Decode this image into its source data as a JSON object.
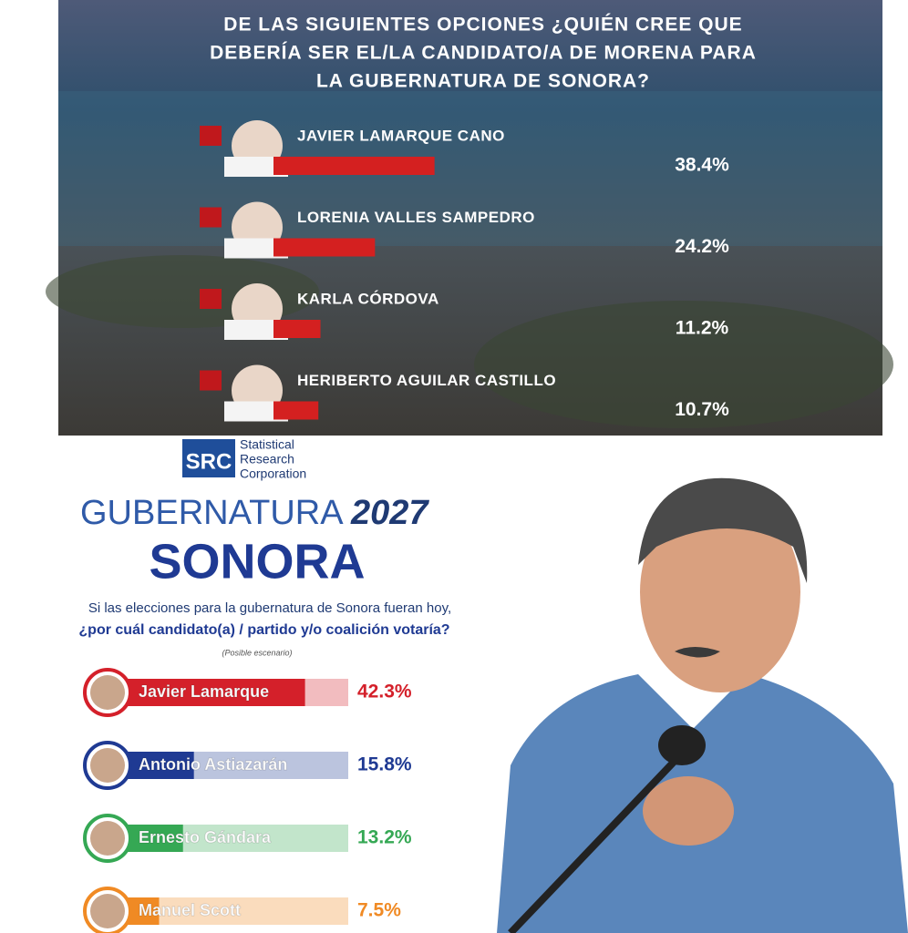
{
  "chart_data": [
    {
      "type": "bar",
      "title": [
        "DE LAS SIGUIENTES OPCIONES ¿QUIÉN CREE QUE",
        "DEBERÍA SER EL/LA CANDIDATO/A DE MORENA PARA",
        "LA GUBERNATURA DE SONORA?"
      ],
      "categories": [
        "JAVIER LAMARQUE CANO",
        "LORENIA VALLES SAMPEDRO",
        "KARLA CÓRDOVA",
        "HERIBERTO AGUILAR CASTILLO"
      ],
      "values": [
        38.4,
        24.2,
        11.2,
        10.7
      ],
      "value_labels": [
        "38.4%",
        "24.2%",
        "11.2%",
        "10.7%"
      ],
      "color": "#d42020"
    },
    {
      "type": "bar",
      "brand": "SRC",
      "brand_name": [
        "Statistical",
        "Research",
        "Corporation"
      ],
      "title": "GUBERNATURA",
      "title_year": "2027",
      "subtitle": "SONORA",
      "question": [
        "Si las elecciones para la gubernatura de Sonora fueran hoy,",
        "¿por cuál candidato(a) / partido y/o coalición votaría?"
      ],
      "note": "(Posible escenario)",
      "categories": [
        "Javier Lamarque",
        "Antonio Astiazarán",
        "Ernesto Gándara",
        "Manuel Scott"
      ],
      "values": [
        42.3,
        15.8,
        13.2,
        7.5
      ],
      "value_labels": [
        "42.3%",
        "15.8%",
        "13.2%",
        "7.5%"
      ],
      "colors": [
        "#d4202a",
        "#1f3a93",
        "#35a854",
        "#f08a24"
      ]
    }
  ]
}
